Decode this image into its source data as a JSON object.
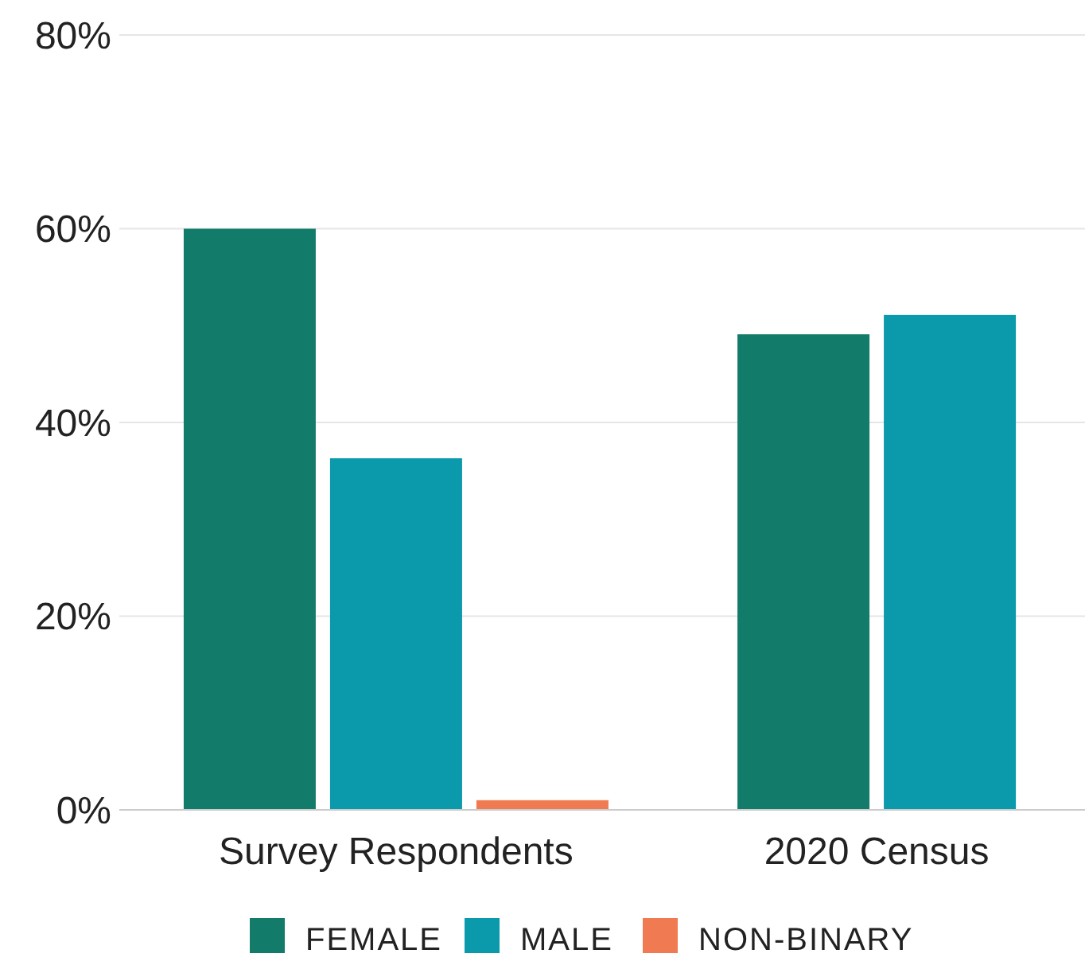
{
  "chart_data": {
    "type": "bar",
    "categories": [
      "Survey Respondents",
      "2020 Census"
    ],
    "series": [
      {
        "name": "FEMALE",
        "color": "#137b6a",
        "values": [
          60,
          49.1
        ]
      },
      {
        "name": "MALE",
        "color": "#0a9aab",
        "values": [
          36.3,
          51.1
        ]
      },
      {
        "name": "NON-BINARY",
        "color": "#f07b52",
        "values": [
          1,
          null
        ]
      }
    ],
    "ylim": [
      0,
      80
    ],
    "yticks": [
      {
        "value": 0,
        "label": "0%"
      },
      {
        "value": 20,
        "label": "20%"
      },
      {
        "value": 40,
        "label": "40%"
      },
      {
        "value": 60,
        "label": "60%"
      },
      {
        "value": 80,
        "label": "80%"
      }
    ],
    "grid": "y",
    "legend": "bottom"
  }
}
